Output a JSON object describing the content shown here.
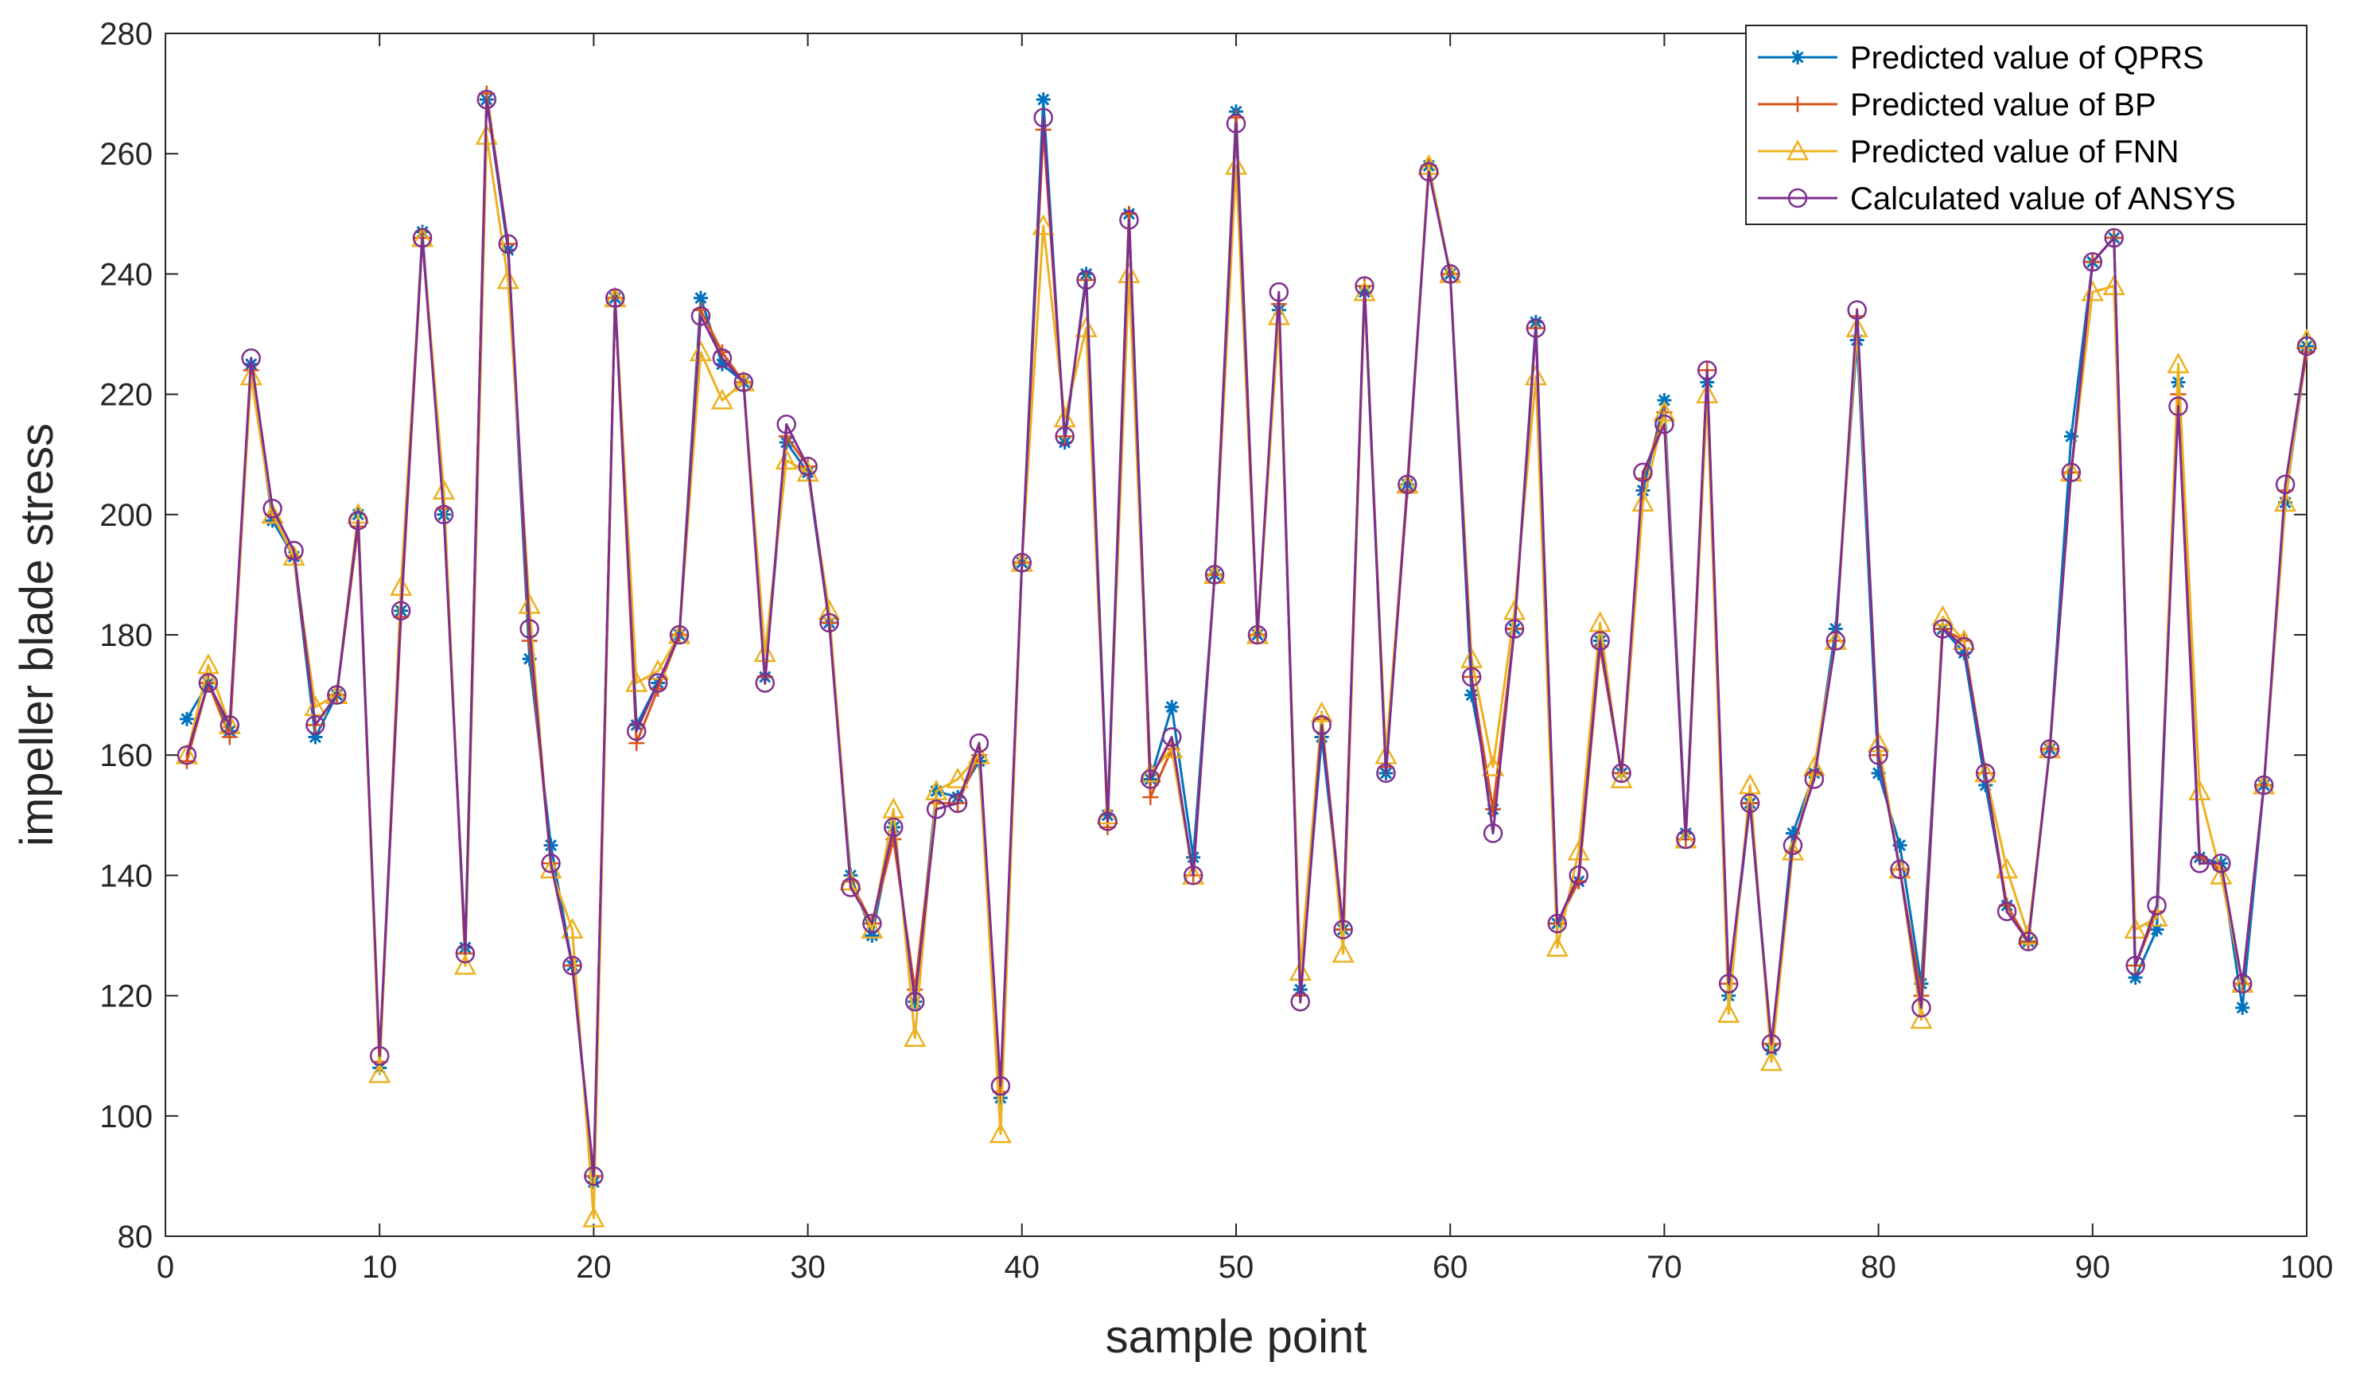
{
  "chart_data": {
    "type": "line",
    "title": "",
    "xlabel": "sample point",
    "ylabel": "impeller blade stress",
    "xlim": [
      0,
      100
    ],
    "ylim": [
      80,
      280
    ],
    "xticks": [
      0,
      10,
      20,
      30,
      40,
      50,
      60,
      70,
      80,
      90,
      100
    ],
    "yticks": [
      80,
      100,
      120,
      140,
      160,
      180,
      200,
      220,
      240,
      260,
      280
    ],
    "grid": false,
    "legend_position": "top-right",
    "series": [
      {
        "name": "Predicted value of QPRS",
        "color": "#0072BD",
        "marker": "asterisk",
        "values": [
          166,
          172,
          164,
          225,
          199,
          193,
          163,
          170,
          200,
          108,
          184,
          247,
          200,
          128,
          269,
          244,
          176,
          145,
          125,
          89,
          236,
          165,
          172,
          180,
          236,
          225,
          222,
          173,
          212,
          207,
          182,
          140,
          130,
          148,
          119,
          154,
          153,
          159,
          103,
          192,
          269,
          212,
          240,
          150,
          250,
          156,
          168,
          143,
          190,
          267,
          180,
          234,
          121,
          163,
          131,
          237,
          157,
          205,
          258,
          240,
          170,
          151,
          181,
          232,
          132,
          139,
          179,
          157,
          204,
          219,
          147,
          222,
          120,
          152,
          111,
          147,
          157,
          181,
          229,
          157,
          145,
          122,
          181,
          177,
          155,
          135,
          129,
          161,
          213,
          242,
          246,
          123,
          131,
          222,
          143,
          142,
          118,
          155,
          202,
          228
        ]
      },
      {
        "name": "Predicted value of BP",
        "color": "#D95319",
        "marker": "plus",
        "values": [
          159,
          172,
          163,
          224,
          200,
          193,
          165,
          170,
          198,
          109,
          183,
          246,
          201,
          127,
          270,
          245,
          179,
          142,
          125,
          90,
          236,
          162,
          171,
          180,
          234,
          227,
          222,
          173,
          213,
          208,
          182,
          139,
          132,
          146,
          121,
          152,
          152,
          160,
          104,
          192,
          264,
          213,
          239,
          148,
          250,
          153,
          161,
          140,
          190,
          266,
          180,
          235,
          120,
          166,
          131,
          238,
          158,
          204,
          258,
          240,
          173,
          151,
          181,
          231,
          132,
          139,
          178,
          157,
          206,
          217,
          146,
          224,
          122,
          152,
          112,
          144,
          157,
          179,
          233,
          160,
          141,
          120,
          181,
          179,
          157,
          135,
          129,
          161,
          207,
          242,
          246,
          125,
          134,
          220,
          143,
          141,
          122,
          155,
          204,
          227
        ]
      },
      {
        "name": "Predicted value of FNN",
        "color": "#EDB120",
        "marker": "triangle",
        "values": [
          160,
          175,
          165,
          223,
          200,
          193,
          168,
          170,
          200,
          107,
          188,
          246,
          204,
          125,
          263,
          239,
          185,
          141,
          131,
          83,
          236,
          172,
          174,
          180,
          227,
          219,
          222,
          177,
          209,
          207,
          184,
          139,
          131,
          151,
          113,
          154,
          156,
          160,
          97,
          192,
          248,
          216,
          231,
          150,
          240,
          157,
          161,
          140,
          190,
          258,
          180,
          233,
          124,
          167,
          127,
          237,
          160,
          205,
          258,
          240,
          176,
          158,
          184,
          223,
          128,
          144,
          182,
          156,
          202,
          217,
          146,
          220,
          117,
          155,
          109,
          144,
          158,
          179,
          231,
          162,
          141,
          116,
          183,
          179,
          157,
          141,
          130,
          161,
          207,
          237,
          238,
          131,
          133,
          225,
          154,
          140,
          122,
          155,
          202,
          229
        ]
      },
      {
        "name": "Calculated value of ANSYS",
        "color": "#7E2F8E",
        "marker": "circle",
        "values": [
          160,
          172,
          165,
          226,
          201,
          194,
          165,
          170,
          199,
          110,
          184,
          246,
          200,
          127,
          269,
          245,
          181,
          142,
          125,
          90,
          236,
          164,
          172,
          180,
          233,
          226,
          222,
          172,
          215,
          208,
          182,
          138,
          132,
          148,
          119,
          151,
          152,
          162,
          105,
          192,
          266,
          213,
          239,
          149,
          249,
          156,
          163,
          140,
          190,
          265,
          180,
          237,
          119,
          165,
          131,
          238,
          157,
          205,
          257,
          240,
          173,
          147,
          181,
          231,
          132,
          140,
          179,
          157,
          207,
          215,
          146,
          224,
          122,
          152,
          112,
          145,
          156,
          179,
          234,
          160,
          141,
          118,
          181,
          178,
          157,
          134,
          129,
          161,
          207,
          242,
          246,
          125,
          135,
          218,
          142,
          142,
          122,
          155,
          205,
          228
        ]
      }
    ]
  }
}
